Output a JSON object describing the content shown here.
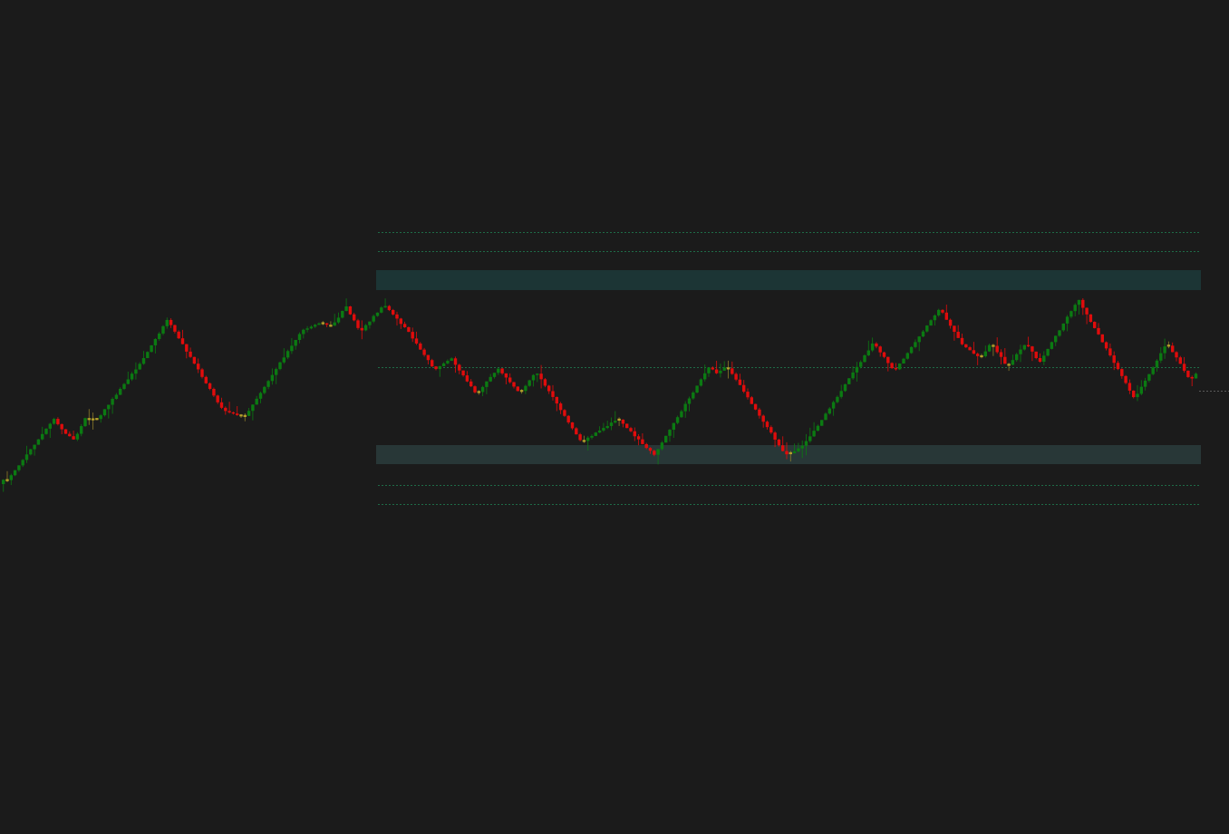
{
  "chart_data": {
    "type": "candlestick",
    "title": "",
    "xlabel": "",
    "ylabel": "",
    "ylim": [
      0,
      920
    ],
    "grid": false,
    "legend": "none",
    "colors": {
      "background": "#1b1b1b",
      "up": "#0b7a12",
      "down": "#e00c0c",
      "doji": "#b5a02a",
      "wick": "#8a7a2a",
      "zone_upper": "#1c3535",
      "zone_lower": "#283737",
      "level_line": "#1f7a4f",
      "last_price_line": "#5a5a5a"
    },
    "waypoints": [
      [
        0,
        530
      ],
      [
        6,
        530
      ],
      [
        58,
        462
      ],
      [
        68,
        476
      ],
      [
        80,
        485
      ],
      [
        92,
        462
      ],
      [
        106,
        462
      ],
      [
        155,
        398
      ],
      [
        183,
        353
      ],
      [
        244,
        452
      ],
      [
        268,
        460
      ],
      [
        330,
        366
      ],
      [
        350,
        356
      ],
      [
        365,
        360
      ],
      [
        380,
        338
      ],
      [
        396,
        366
      ],
      [
        422,
        336
      ],
      [
        448,
        365
      ],
      [
        478,
        408
      ],
      [
        496,
        395
      ],
      [
        524,
        435
      ],
      [
        548,
        406
      ],
      [
        572,
        434
      ],
      [
        590,
        410
      ],
      [
        640,
        488
      ],
      [
        680,
        462
      ],
      [
        720,
        502
      ],
      [
        780,
        405
      ],
      [
        790,
        412
      ],
      [
        800,
        403
      ],
      [
        865,
        502
      ],
      [
        880,
        495
      ],
      [
        890,
        485
      ],
      [
        962,
        378
      ],
      [
        985,
        410
      ],
      [
        1035,
        340
      ],
      [
        1060,
        380
      ],
      [
        1080,
        395
      ],
      [
        1092,
        378
      ],
      [
        1110,
        405
      ],
      [
        1130,
        378
      ],
      [
        1145,
        400
      ],
      [
        1188,
        330
      ],
      [
        1250,
        440
      ],
      [
        1286,
        378
      ],
      [
        1312,
        420
      ],
      [
        1318,
        412
      ],
      [
        1322,
        430
      ]
    ],
    "zones": [
      {
        "name": "upper-zone",
        "y_top": 298,
        "y_bottom": 320
      },
      {
        "name": "lower-zone",
        "y_top": 491,
        "y_bottom": 512
      }
    ],
    "levels": [
      256,
      277,
      405,
      535,
      556
    ],
    "last_price": 431
  }
}
